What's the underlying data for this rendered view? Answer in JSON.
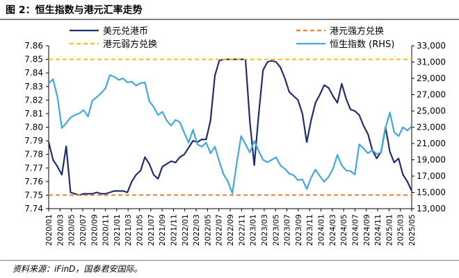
{
  "header": {
    "title": "图 2：恒生指数与港元汇率走势"
  },
  "footer": {
    "source": "资料来源：iFinD，国泰君安国际。"
  },
  "chart_data": {
    "type": "line",
    "title": "图 2：恒生指数与港元汇率走势",
    "grid": false,
    "legend_placement": "top",
    "y_left": {
      "lim": [
        7.74,
        7.86
      ],
      "ticks": [
        "7.74",
        "7.75",
        "7.76",
        "7.77",
        "7.78",
        "7.79",
        "7.80",
        "7.81",
        "7.82",
        "7.83",
        "7.84",
        "7.85",
        "7.86"
      ]
    },
    "y_right": {
      "lim": [
        13000,
        33000
      ],
      "ticks": [
        "13,000",
        "15,000",
        "17,000",
        "19,000",
        "21,000",
        "23,000",
        "25,000",
        "27,000",
        "29,000",
        "31,000",
        "33,000"
      ]
    },
    "x_range": [
      "2020-01",
      "2025-05"
    ],
    "x_ticks": [
      "2020/01",
      "2020/03",
      "2020/05",
      "2020/07",
      "2020/09",
      "2020/11",
      "2021/01",
      "2021/03",
      "2021/05",
      "2021/07",
      "2021/09",
      "2021/11",
      "2022/01",
      "2022/03",
      "2022/05",
      "2022/07",
      "2022/09",
      "2022/11",
      "2023/01",
      "2023/03",
      "2023/05",
      "2023/07",
      "2023/09",
      "2023/11",
      "2024/01",
      "2024/03",
      "2024/05",
      "2024/07",
      "2024/09",
      "2024/11",
      "2025/01",
      "2025/03",
      "2025/05"
    ],
    "series": [
      {
        "name": "美元兑港币",
        "axis": "left",
        "color": "#1f2d6e",
        "style": "solid",
        "values": [
          7.789,
          7.776,
          7.771,
          7.765,
          7.786,
          7.752,
          7.751,
          7.75,
          7.751,
          7.751,
          7.751,
          7.752,
          7.751,
          7.751,
          7.752,
          7.753,
          7.753,
          7.753,
          7.752,
          7.76,
          7.765,
          7.768,
          7.778,
          7.773,
          7.765,
          7.762,
          7.771,
          7.773,
          7.775,
          7.774,
          7.778,
          7.78,
          7.785,
          7.79,
          7.789,
          7.791,
          7.791,
          7.805,
          7.838,
          7.849,
          7.85,
          7.85,
          7.85,
          7.85,
          7.85,
          7.85,
          7.804,
          7.772,
          7.809,
          7.842,
          7.848,
          7.849,
          7.848,
          7.844,
          7.836,
          7.826,
          7.823,
          7.82,
          7.81,
          7.789,
          7.805,
          7.818,
          7.824,
          7.831,
          7.829,
          7.823,
          7.818,
          7.832,
          7.821,
          7.813,
          7.812,
          7.809,
          7.801,
          7.795,
          7.783,
          7.777,
          7.782,
          7.8,
          7.782,
          7.774,
          7.777,
          7.765,
          7.76,
          7.753
        ]
      },
      {
        "name": "港元强方兑换",
        "axis": "left",
        "color": "#ee7d31",
        "style": "dashed",
        "values": [
          7.75
        ]
      },
      {
        "name": "港元弱方兑换",
        "axis": "left",
        "color": "#f5c100",
        "style": "dashed",
        "values": [
          7.85
        ]
      },
      {
        "name": "恒生指数 (RHS)",
        "axis": "right",
        "color": "#3fa9df",
        "style": "solid",
        "values": [
          28400,
          28900,
          26700,
          22900,
          23500,
          24200,
          24500,
          24700,
          25100,
          24300,
          26300,
          26700,
          27200,
          27800,
          29400,
          29200,
          28800,
          29000,
          28500,
          28600,
          28100,
          28400,
          28500,
          26200,
          25500,
          24500,
          24900,
          23800,
          23200,
          23900,
          23600,
          22300,
          21100,
          22700,
          20900,
          20600,
          21100,
          19800,
          20600,
          18800,
          17200,
          16300,
          14900,
          18600,
          21900,
          20900,
          19900,
          21300,
          20100,
          19000,
          18700,
          19000,
          19300,
          18300,
          17900,
          17300,
          17100,
          16500,
          16600,
          15400,
          16800,
          17800,
          17000,
          16300,
          16900,
          17900,
          19600,
          18300,
          17700,
          17600,
          17200,
          20900,
          20400,
          19800,
          20200,
          19700,
          19900,
          22900,
          24800,
          22400,
          21900,
          23000,
          22600,
          23100
        ]
      }
    ]
  }
}
